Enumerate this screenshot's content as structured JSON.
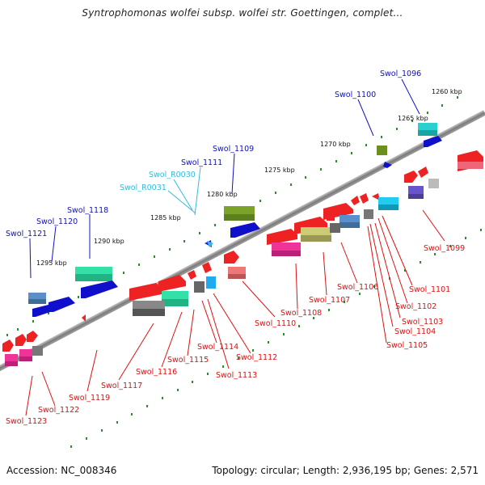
{
  "title": "Syntrophomonas wolfei subsp. wolfei str. Goettingen, complet...",
  "footer": {
    "accession": "Accession: NC_008346",
    "topology": "Topology: circular; Length: 2,936,195 bp; Genes: 2,571"
  },
  "colors": {
    "backbone": "#8a8a8a",
    "ticks": "#2e8b2e",
    "label_top": "#1010c0",
    "label_rna": "#33bbdd",
    "label_bottom": "#dd1111"
  },
  "kbp_labels": [
    "1260 kbp",
    "1265 kbp",
    "1270 kbp",
    "1275 kbp",
    "1280 kbp",
    "1285 kbp",
    "1290 kbp",
    "1295 kbp"
  ],
  "genes_top": [
    "Swol_1096",
    "Swol_1100",
    "Swol_1109",
    "Swol_1111",
    "Swol_1118",
    "Swol_1120",
    "Swol_1121"
  ],
  "rna_genes": [
    "Swol_R0030",
    "Swol_R0031"
  ],
  "genes_bottom": [
    "Swol_1099",
    "Swol_1101",
    "Swol_1102",
    "Swol_1103",
    "Swol_1104",
    "Swol_1105",
    "Swol_1106",
    "Swol_1107",
    "Swol_1108",
    "Swol_1110",
    "Swol_1112",
    "Swol_1113",
    "Swol_1114",
    "Swol_1115",
    "Swol_1116",
    "Swol_1117",
    "Swol_1119",
    "Swol_1122",
    "Swol_1123"
  ]
}
